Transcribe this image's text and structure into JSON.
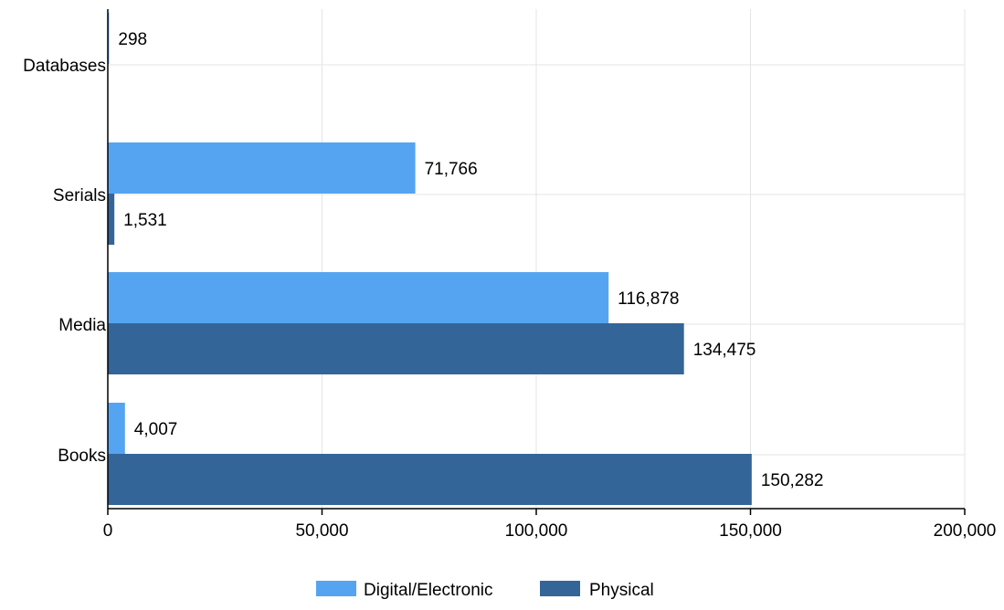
{
  "chart_data": {
    "type": "bar",
    "orientation": "horizontal",
    "categories": [
      "Databases",
      "Serials",
      "Media",
      "Books"
    ],
    "series": [
      {
        "name": "Digital/Electronic",
        "color": "#55a4f2",
        "values": [
          298,
          71766,
          116878,
          4007
        ],
        "labels": [
          "298",
          "71,766",
          "116,878",
          "4,007"
        ]
      },
      {
        "name": "Physical",
        "color": "#346598",
        "values": [
          null,
          1531,
          134475,
          150282
        ],
        "labels": [
          "",
          "1,531",
          "134,475",
          "150,282"
        ]
      }
    ],
    "xlim": [
      0,
      200000
    ],
    "xticks": [
      0,
      50000,
      100000,
      150000,
      200000
    ],
    "xtick_labels": [
      "0",
      "50,000",
      "100,000",
      "150,000",
      "200,000"
    ],
    "title": "",
    "xlabel": "",
    "ylabel": "",
    "grid": true,
    "legend_position": "bottom-center"
  }
}
